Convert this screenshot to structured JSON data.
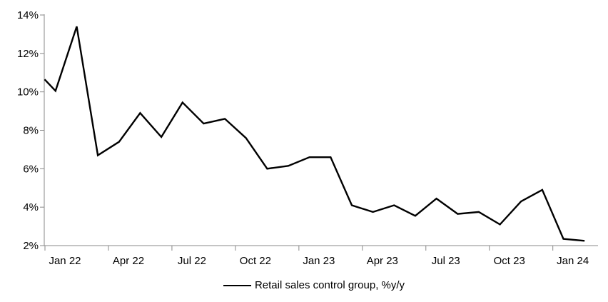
{
  "chart_data": {
    "type": "line",
    "title": "",
    "xlabel": "",
    "ylabel": "",
    "legend": "Retail sales control group, %y/y",
    "legend_position": "bottom-center",
    "grid": false,
    "ylim": [
      2,
      14
    ],
    "y_step": 2,
    "y_tick_labels": [
      "2%",
      "4%",
      "6%",
      "8%",
      "10%",
      "12%",
      "14%"
    ],
    "x_tick_labels": [
      "Jan 22",
      "Apr 22",
      "Jul 22",
      "Oct 22",
      "Jan 23",
      "Apr 23",
      "Jul 23",
      "Oct 23",
      "Jan 24"
    ],
    "x_tick_month_indices": [
      0,
      3,
      6,
      9,
      12,
      15,
      18,
      21,
      24
    ],
    "categories": [
      "Jan 22",
      "Feb 22",
      "Mar 22",
      "Apr 22",
      "May 22",
      "Jun 22",
      "Jul 22",
      "Aug 22",
      "Sep 22",
      "Oct 22",
      "Nov 22",
      "Dec 22",
      "Jan 23",
      "Feb 23",
      "Mar 23",
      "Apr 23",
      "May 23",
      "Jun 23",
      "Jul 23",
      "Aug 23",
      "Sep 23",
      "Oct 23",
      "Nov 23",
      "Dec 23",
      "Jan 24",
      "Feb 24"
    ],
    "series": [
      {
        "name": "Retail sales control group, %y/y",
        "values": [
          10.05,
          13.4,
          6.7,
          7.4,
          8.9,
          7.65,
          9.45,
          8.35,
          8.6,
          7.6,
          6.0,
          6.15,
          6.6,
          6.6,
          4.1,
          3.75,
          4.1,
          3.55,
          4.45,
          3.65,
          3.75,
          3.1,
          4.3,
          4.9,
          2.35,
          2.25
        ]
      }
    ],
    "left_edge_lead_in_value": 10.65,
    "line_color": "#000000",
    "axis_color": "#898989",
    "text_color": "#000000"
  }
}
